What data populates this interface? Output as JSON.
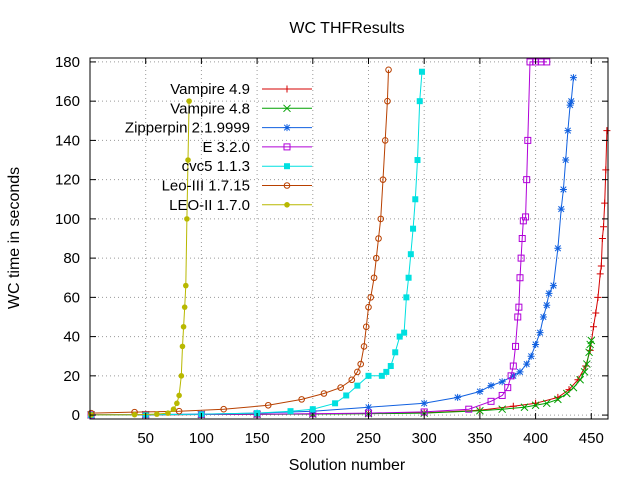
{
  "chart_data": {
    "type": "line",
    "title": "WC THFResults",
    "xlabel": "Solution number",
    "ylabel": "WC time in seconds",
    "xlim": [
      0,
      465
    ],
    "ylim": [
      -2,
      182
    ],
    "xticks": [
      50,
      100,
      150,
      200,
      250,
      300,
      350,
      400,
      450
    ],
    "yticks": [
      0,
      20,
      40,
      60,
      80,
      100,
      120,
      140,
      160,
      180
    ],
    "grid": true,
    "legend_position": "top-left",
    "series": [
      {
        "name": "Vampire 4.9",
        "color": "#d40000",
        "marker": "plus",
        "points": [
          [
            1,
            0.1
          ],
          [
            50,
            0.2
          ],
          [
            100,
            0.3
          ],
          [
            150,
            0.4
          ],
          [
            200,
            0.6
          ],
          [
            250,
            0.8
          ],
          [
            300,
            1.1
          ],
          [
            350,
            2.5
          ],
          [
            380,
            4.5
          ],
          [
            400,
            6
          ],
          [
            420,
            9
          ],
          [
            430,
            13
          ],
          [
            438,
            18
          ],
          [
            445,
            25
          ],
          [
            449,
            33
          ],
          [
            452,
            45
          ],
          [
            454,
            52
          ],
          [
            456,
            60
          ],
          [
            458,
            72
          ],
          [
            459,
            76
          ],
          [
            460,
            90
          ],
          [
            461,
            96
          ],
          [
            462,
            108
          ],
          [
            463,
            125
          ],
          [
            464,
            145
          ]
        ]
      },
      {
        "name": "Vampire 4.8",
        "color": "#00a000",
        "marker": "x",
        "points": [
          [
            1,
            0.1
          ],
          [
            50,
            0.2
          ],
          [
            100,
            0.3
          ],
          [
            150,
            0.4
          ],
          [
            200,
            0.5
          ],
          [
            250,
            0.7
          ],
          [
            300,
            1
          ],
          [
            350,
            2.2
          ],
          [
            370,
            3
          ],
          [
            390,
            4
          ],
          [
            400,
            5
          ],
          [
            410,
            6
          ],
          [
            420,
            8
          ],
          [
            428,
            11
          ],
          [
            434,
            14
          ],
          [
            440,
            18
          ],
          [
            444,
            22
          ],
          [
            446,
            26
          ],
          [
            448,
            32
          ],
          [
            449,
            36
          ],
          [
            450,
            38
          ]
        ]
      },
      {
        "name": "Zipperpin 2.1.9999",
        "color": "#1060e0",
        "marker": "star",
        "points": [
          [
            1,
            0.1
          ],
          [
            50,
            0.3
          ],
          [
            100,
            0.5
          ],
          [
            150,
            1
          ],
          [
            200,
            2
          ],
          [
            250,
            4
          ],
          [
            300,
            6
          ],
          [
            330,
            9
          ],
          [
            350,
            12
          ],
          [
            360,
            15
          ],
          [
            370,
            17
          ],
          [
            380,
            20
          ],
          [
            386,
            22
          ],
          [
            392,
            26
          ],
          [
            396,
            30
          ],
          [
            400,
            36
          ],
          [
            404,
            42
          ],
          [
            407,
            50
          ],
          [
            410,
            56
          ],
          [
            412,
            62
          ],
          [
            416,
            66
          ],
          [
            420,
            85
          ],
          [
            423,
            105
          ],
          [
            425,
            115
          ],
          [
            427,
            130
          ],
          [
            429,
            145
          ],
          [
            431,
            158
          ],
          [
            432,
            160
          ],
          [
            434,
            172
          ]
        ]
      },
      {
        "name": "E 3.2.0",
        "color": "#b000d8",
        "marker": "square",
        "points": [
          [
            1,
            0.1
          ],
          [
            50,
            0.2
          ],
          [
            100,
            0.3
          ],
          [
            150,
            0.5
          ],
          [
            200,
            0.7
          ],
          [
            250,
            1
          ],
          [
            300,
            1.6
          ],
          [
            340,
            3
          ],
          [
            360,
            7
          ],
          [
            370,
            10
          ],
          [
            375,
            14
          ],
          [
            378,
            20
          ],
          [
            380,
            25
          ],
          [
            382,
            35
          ],
          [
            384,
            50
          ],
          [
            385,
            55
          ],
          [
            386,
            70
          ],
          [
            387,
            80
          ],
          [
            388,
            90
          ],
          [
            389,
            99
          ],
          [
            391,
            101
          ],
          [
            392,
            120
          ],
          [
            393,
            140
          ],
          [
            395,
            180
          ],
          [
            400,
            180
          ],
          [
            405,
            180
          ],
          [
            410,
            180
          ]
        ]
      },
      {
        "name": "cvc5 1.1.3",
        "color": "#00e0e0",
        "marker": "filled-square",
        "points": [
          [
            1,
            0.1
          ],
          [
            50,
            0.2
          ],
          [
            100,
            0.4
          ],
          [
            150,
            1
          ],
          [
            180,
            2
          ],
          [
            200,
            3
          ],
          [
            220,
            6
          ],
          [
            230,
            10
          ],
          [
            240,
            15
          ],
          [
            250,
            20
          ],
          [
            262,
            20
          ],
          [
            266,
            22
          ],
          [
            270,
            25
          ],
          [
            274,
            32
          ],
          [
            278,
            40
          ],
          [
            282,
            42
          ],
          [
            284,
            60
          ],
          [
            286,
            70
          ],
          [
            288,
            82
          ],
          [
            290,
            95
          ],
          [
            292,
            110
          ],
          [
            294,
            130
          ],
          [
            296,
            160
          ],
          [
            298,
            175
          ]
        ]
      },
      {
        "name": "Leo-III 1.7.15",
        "color": "#b84000",
        "marker": "circle",
        "points": [
          [
            1,
            1
          ],
          [
            40,
            1.5
          ],
          [
            80,
            2
          ],
          [
            120,
            3
          ],
          [
            160,
            5
          ],
          [
            190,
            8
          ],
          [
            210,
            11
          ],
          [
            225,
            14
          ],
          [
            235,
            18
          ],
          [
            240,
            22
          ],
          [
            243,
            26
          ],
          [
            246,
            35
          ],
          [
            248,
            45
          ],
          [
            250,
            55
          ],
          [
            252,
            60
          ],
          [
            255,
            70
          ],
          [
            257,
            80
          ],
          [
            259,
            90
          ],
          [
            261,
            100
          ],
          [
            263,
            120
          ],
          [
            265,
            140
          ],
          [
            267,
            160
          ],
          [
            268,
            176
          ]
        ]
      },
      {
        "name": "LEO-II 1.7.0",
        "color": "#b8b800",
        "marker": "filled-circle",
        "points": [
          [
            1,
            0.1
          ],
          [
            40,
            0.2
          ],
          [
            60,
            0.5
          ],
          [
            70,
            1
          ],
          [
            75,
            3
          ],
          [
            78,
            6
          ],
          [
            80,
            10
          ],
          [
            82,
            20
          ],
          [
            83,
            35
          ],
          [
            84,
            45
          ],
          [
            85,
            55
          ],
          [
            86,
            66
          ],
          [
            87,
            100
          ],
          [
            88,
            130
          ],
          [
            89,
            160
          ]
        ]
      }
    ]
  }
}
